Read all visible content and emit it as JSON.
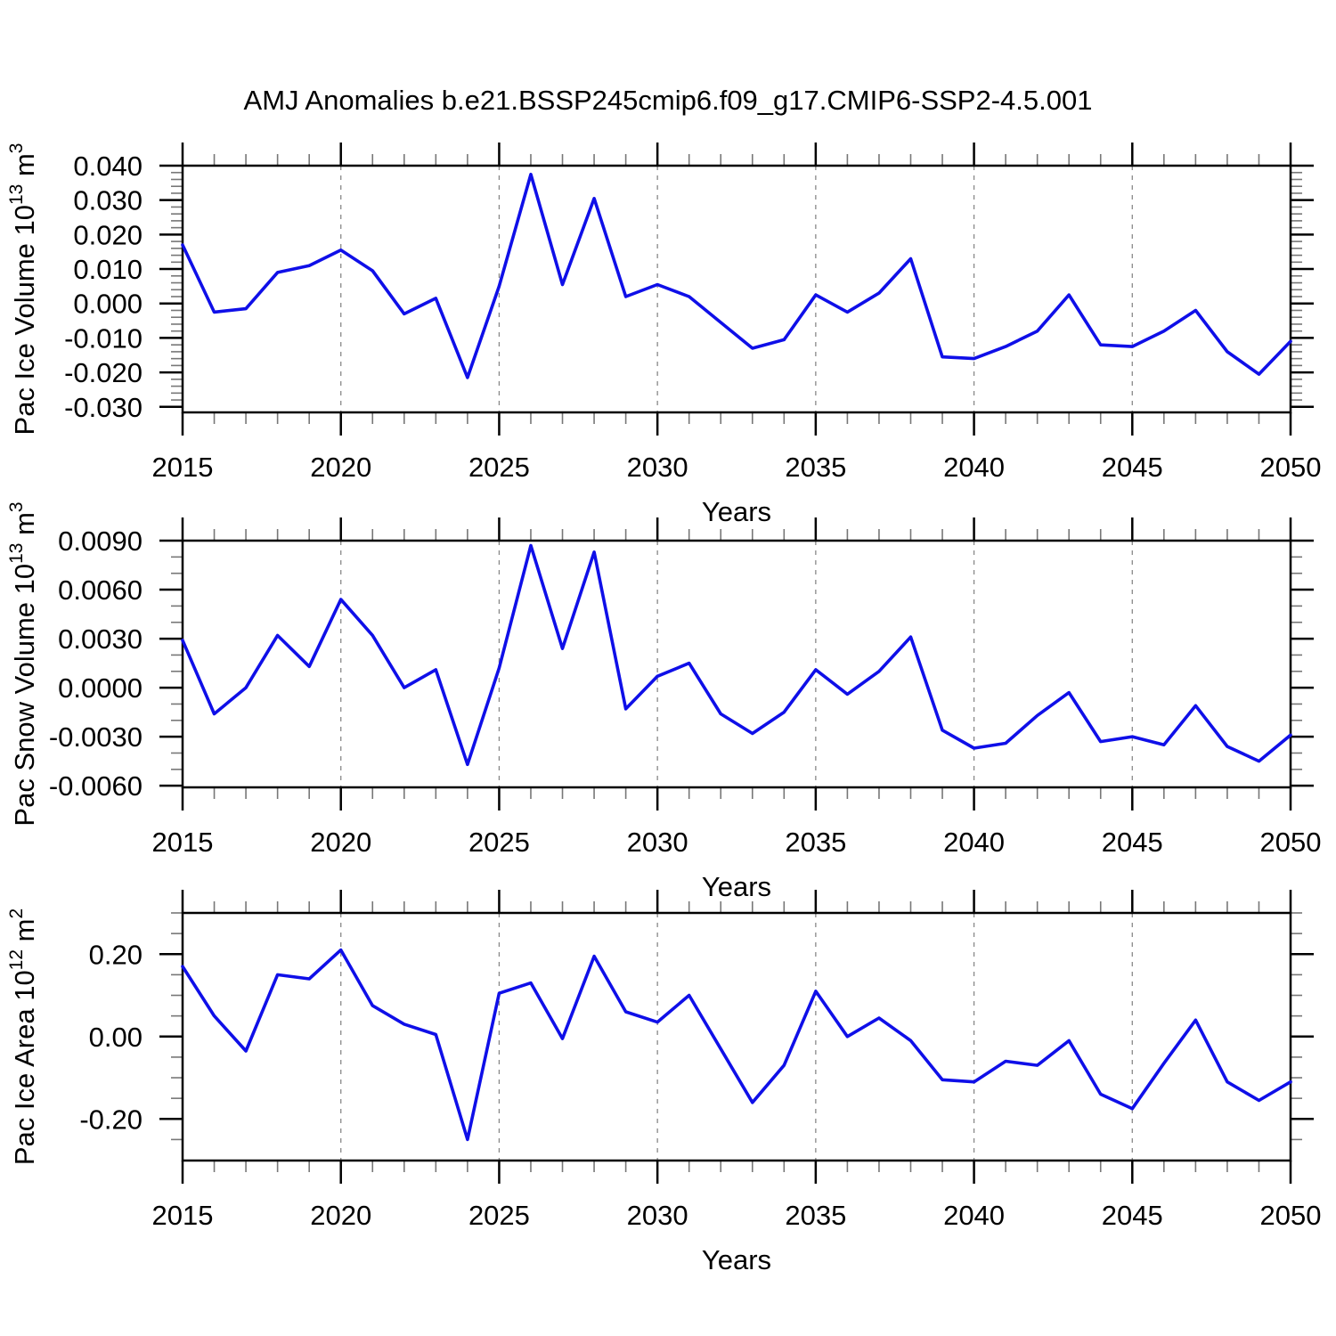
{
  "title": "AMJ Anomalies b.e21.BSSP245cmip6.f09_g17.CMIP6-SSP2-4.5.001",
  "colors": {
    "line": "#0f0fe8",
    "grid": "#888888",
    "axis": "#000000",
    "minor_tick": "#777777"
  },
  "chart_data": [
    {
      "type": "line",
      "name": "pac-ice-volume",
      "ylabel_plain": "Pac Ice Volume 10^13 m^3",
      "ylabel_parts": {
        "base1": "Pac Ice Volume 10",
        "sup1": "13",
        "base2": " m",
        "sup2": "3"
      },
      "xlabel": "Years",
      "x": [
        2015,
        2016,
        2017,
        2018,
        2019,
        2020,
        2021,
        2022,
        2023,
        2024,
        2025,
        2026,
        2027,
        2028,
        2029,
        2030,
        2031,
        2032,
        2033,
        2034,
        2035,
        2036,
        2037,
        2038,
        2039,
        2040,
        2041,
        2042,
        2043,
        2044,
        2045,
        2046,
        2047,
        2048,
        2049,
        2050
      ],
      "values": [
        0.017,
        -0.0025,
        -0.0015,
        0.009,
        0.011,
        0.0155,
        0.0095,
        -0.003,
        0.0015,
        -0.0215,
        0.005,
        0.0375,
        0.0055,
        0.0305,
        0.002,
        0.0055,
        0.002,
        -0.0055,
        -0.013,
        -0.0105,
        0.0025,
        -0.0025,
        0.003,
        0.013,
        -0.0155,
        -0.016,
        -0.0125,
        -0.008,
        0.0025,
        -0.012,
        -0.0125,
        -0.008,
        -0.002,
        -0.014,
        -0.0205,
        -0.011
      ],
      "ylim": [
        -0.0316,
        0.04
      ],
      "ytick_values": [
        0.04,
        0.03,
        0.02,
        0.01,
        0.0,
        -0.01,
        -0.02,
        -0.03
      ],
      "ytick_labels": [
        "0.040",
        "0.030",
        "0.020",
        "0.010",
        "0.000",
        "-0.010",
        "-0.020",
        "-0.030"
      ],
      "y_minor_step": 0.002,
      "xlim": [
        2015,
        2050
      ],
      "xticks": [
        2015,
        2020,
        2025,
        2030,
        2035,
        2040,
        2045,
        2050
      ],
      "xtick_labels": [
        "2015",
        "2020",
        "2025",
        "2030",
        "2035",
        "2040",
        "2045",
        "2050"
      ],
      "grid_x": [
        2020,
        2025,
        2030,
        2035,
        2040,
        2045
      ],
      "legend": "none",
      "grid": "vertical-dashed"
    },
    {
      "type": "line",
      "name": "pac-snow-volume",
      "ylabel_plain": "Pac Snow Volume 10^13 m^3",
      "ylabel_parts": {
        "base1": "Pac Snow Volume 10",
        "sup1": "13",
        "base2": " m",
        "sup2": "3"
      },
      "xlabel": "Years",
      "x": [
        2015,
        2016,
        2017,
        2018,
        2019,
        2020,
        2021,
        2022,
        2023,
        2024,
        2025,
        2026,
        2027,
        2028,
        2029,
        2030,
        2031,
        2032,
        2033,
        2034,
        2035,
        2036,
        2037,
        2038,
        2039,
        2040,
        2041,
        2042,
        2043,
        2044,
        2045,
        2046,
        2047,
        2048,
        2049,
        2050
      ],
      "values": [
        0.0029,
        -0.0016,
        0.0,
        0.0032,
        0.0013,
        0.0054,
        0.0032,
        0.0,
        0.0011,
        -0.0047,
        0.0012,
        0.0087,
        0.0024,
        0.0083,
        -0.0013,
        0.0007,
        0.0015,
        -0.0016,
        -0.0028,
        -0.0015,
        0.0011,
        -0.0004,
        0.001,
        0.0031,
        -0.0026,
        -0.0037,
        -0.0034,
        -0.0017,
        -0.0003,
        -0.0033,
        -0.003,
        -0.0035,
        -0.0011,
        -0.0036,
        -0.0045,
        -0.0029
      ],
      "ylim": [
        -0.0061,
        0.009
      ],
      "ytick_values": [
        0.009,
        0.006,
        0.003,
        0.0,
        -0.003,
        -0.006
      ],
      "ytick_labels": [
        "0.0090",
        "0.0060",
        "0.0030",
        "0.0000",
        "-0.0030",
        "-0.0060"
      ],
      "y_minor_step": 0.001,
      "xlim": [
        2015,
        2050
      ],
      "xticks": [
        2015,
        2020,
        2025,
        2030,
        2035,
        2040,
        2045,
        2050
      ],
      "xtick_labels": [
        "2015",
        "2020",
        "2025",
        "2030",
        "2035",
        "2040",
        "2045",
        "2050"
      ],
      "grid_x": [
        2020,
        2025,
        2030,
        2035,
        2040,
        2045
      ],
      "legend": "none",
      "grid": "vertical-dashed"
    },
    {
      "type": "line",
      "name": "pac-ice-area",
      "ylabel_plain": "Pac Ice Area 10^12 m^2",
      "ylabel_parts": {
        "base1": "Pac Ice Area 10",
        "sup1": "12",
        "base2": " m",
        "sup2": "2"
      },
      "xlabel": "Years",
      "x": [
        2015,
        2016,
        2017,
        2018,
        2019,
        2020,
        2021,
        2022,
        2023,
        2024,
        2025,
        2026,
        2027,
        2028,
        2029,
        2030,
        2031,
        2032,
        2033,
        2034,
        2035,
        2036,
        2037,
        2038,
        2039,
        2040,
        2041,
        2042,
        2043,
        2044,
        2045,
        2046,
        2047,
        2048,
        2049,
        2050
      ],
      "values": [
        0.17,
        0.05,
        -0.035,
        0.15,
        0.14,
        0.21,
        0.075,
        0.03,
        0.005,
        -0.25,
        0.105,
        0.13,
        -0.005,
        0.195,
        0.06,
        0.035,
        0.1,
        -0.03,
        -0.16,
        -0.07,
        0.11,
        0.0,
        0.045,
        -0.01,
        -0.105,
        -0.11,
        -0.06,
        -0.07,
        -0.01,
        -0.14,
        -0.175,
        -0.065,
        0.04,
        -0.11,
        -0.155,
        -0.11
      ],
      "ylim": [
        -0.301,
        0.3
      ],
      "ytick_values": [
        0.2,
        0.0,
        -0.2
      ],
      "ytick_labels": [
        "0.20",
        "0.00",
        "-0.20"
      ],
      "y_minor_step": 0.05,
      "xlim": [
        2015,
        2050
      ],
      "xticks": [
        2015,
        2020,
        2025,
        2030,
        2035,
        2040,
        2045,
        2050
      ],
      "xtick_labels": [
        "2015",
        "2020",
        "2025",
        "2030",
        "2035",
        "2040",
        "2045",
        "2050"
      ],
      "grid_x": [
        2020,
        2025,
        2030,
        2035,
        2040,
        2045
      ],
      "legend": "none",
      "grid": "vertical-dashed"
    }
  ]
}
